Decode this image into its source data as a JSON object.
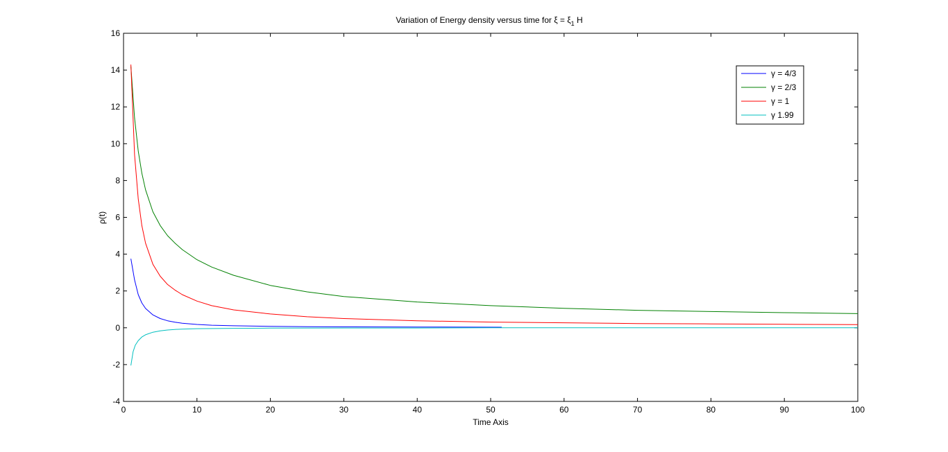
{
  "chart_data": {
    "type": "line",
    "title": "Variation of Energy density versus time for ξ = ξ",
    "title_subscript": "1",
    "title_suffix": " H",
    "xlabel": "Time Axis",
    "ylabel": "ρ(t)",
    "xlim": [
      0,
      100
    ],
    "ylim": [
      -4,
      16
    ],
    "xticks": [
      0,
      10,
      20,
      30,
      40,
      50,
      60,
      70,
      80,
      90,
      100
    ],
    "yticks": [
      -4,
      -2,
      0,
      2,
      4,
      6,
      8,
      10,
      12,
      14,
      16
    ],
    "xtick_labels": [
      "0",
      "10",
      "20",
      "30",
      "40",
      "50",
      "60",
      "70",
      "80",
      "90",
      "100"
    ],
    "ytick_labels": [
      "-4",
      "-2",
      "0",
      "2",
      "4",
      "6",
      "8",
      "10",
      "12",
      "14",
      "16"
    ],
    "grid": false,
    "legend_position": "top-right",
    "series": [
      {
        "name": "γ = 4/3",
        "color": "#0000ff",
        "x": [
          1,
          1.5,
          2,
          2.5,
          3,
          4,
          5,
          6,
          7,
          8,
          10,
          12,
          15,
          20,
          25,
          30,
          40,
          51.5
        ],
        "y": [
          3.75,
          2.6,
          1.8,
          1.35,
          1.05,
          0.7,
          0.5,
          0.38,
          0.3,
          0.25,
          0.18,
          0.14,
          0.11,
          0.08,
          0.06,
          0.05,
          0.04,
          0.03
        ]
      },
      {
        "name": "γ = 2/3",
        "color": "#008000",
        "x": [
          1,
          1.5,
          2,
          2.5,
          3,
          4,
          5,
          6,
          7,
          8,
          10,
          12,
          15,
          20,
          25,
          30,
          40,
          50,
          60,
          70,
          80,
          90,
          100
        ],
        "y": [
          14.2,
          11.4,
          9.6,
          8.4,
          7.5,
          6.3,
          5.55,
          5.0,
          4.6,
          4.25,
          3.7,
          3.3,
          2.85,
          2.3,
          1.95,
          1.7,
          1.4,
          1.2,
          1.06,
          0.95,
          0.88,
          0.82,
          0.77
        ]
      },
      {
        "name": "γ = 1",
        "color": "#ff0000",
        "x": [
          1,
          1.5,
          2,
          2.5,
          3,
          4,
          5,
          6,
          7,
          8,
          10,
          12,
          15,
          20,
          25,
          30,
          40,
          50,
          60,
          70,
          80,
          90,
          100
        ],
        "y": [
          14.3,
          9.4,
          7.0,
          5.55,
          4.6,
          3.45,
          2.8,
          2.35,
          2.05,
          1.8,
          1.45,
          1.2,
          0.97,
          0.75,
          0.6,
          0.5,
          0.38,
          0.31,
          0.27,
          0.23,
          0.21,
          0.19,
          0.17
        ]
      },
      {
        "name": "γ 1.99",
        "color": "#00bfbf",
        "x": [
          1,
          1.3,
          1.6,
          2,
          2.5,
          3,
          4,
          5,
          6,
          7,
          8,
          10,
          15,
          20,
          30,
          40,
          50,
          60,
          70,
          80,
          90,
          100
        ],
        "y": [
          -2.05,
          -1.3,
          -0.95,
          -0.7,
          -0.5,
          -0.38,
          -0.24,
          -0.17,
          -0.12,
          -0.09,
          -0.07,
          -0.05,
          -0.03,
          -0.02,
          -0.01,
          -0.01,
          0,
          0,
          0,
          0,
          0,
          0
        ]
      }
    ]
  }
}
